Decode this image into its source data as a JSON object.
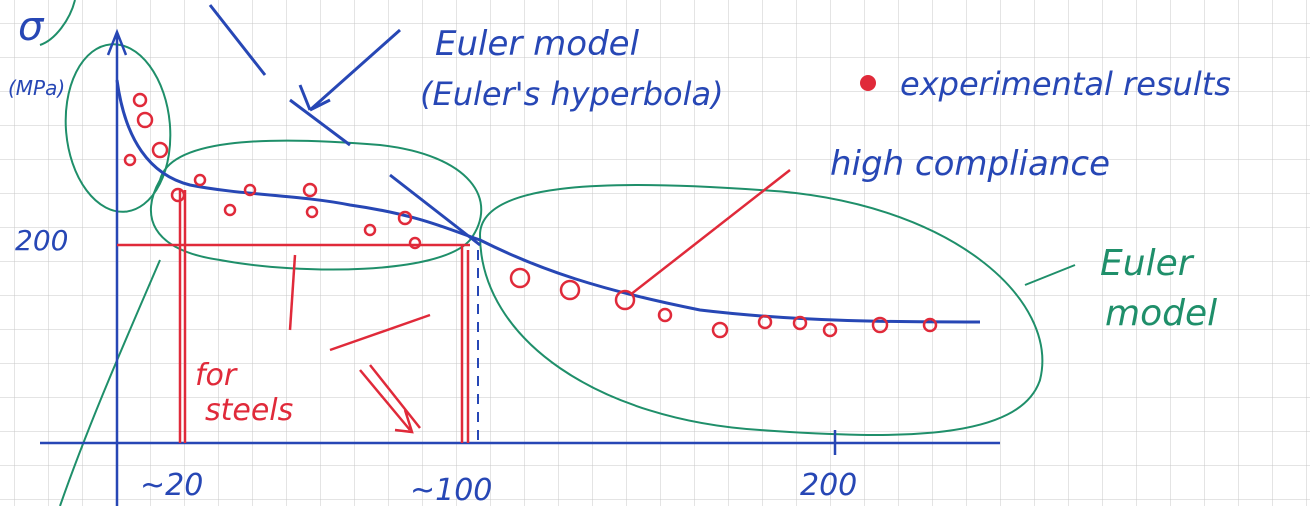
{
  "axis": {
    "y_symbol": "σ",
    "y_unit": "(MPa)",
    "y_tick": "200",
    "x_ticks": [
      "~20",
      "~100",
      "200"
    ]
  },
  "annotations": {
    "euler_model_title": "Euler model",
    "euler_hyperbola": "(Euler's hyperbola)",
    "experimental_results": "experimental results",
    "high_compliance": "high compliance",
    "euler_model_right": [
      "Euler",
      "model"
    ],
    "for_steels": [
      "for",
      "steels"
    ]
  }
}
